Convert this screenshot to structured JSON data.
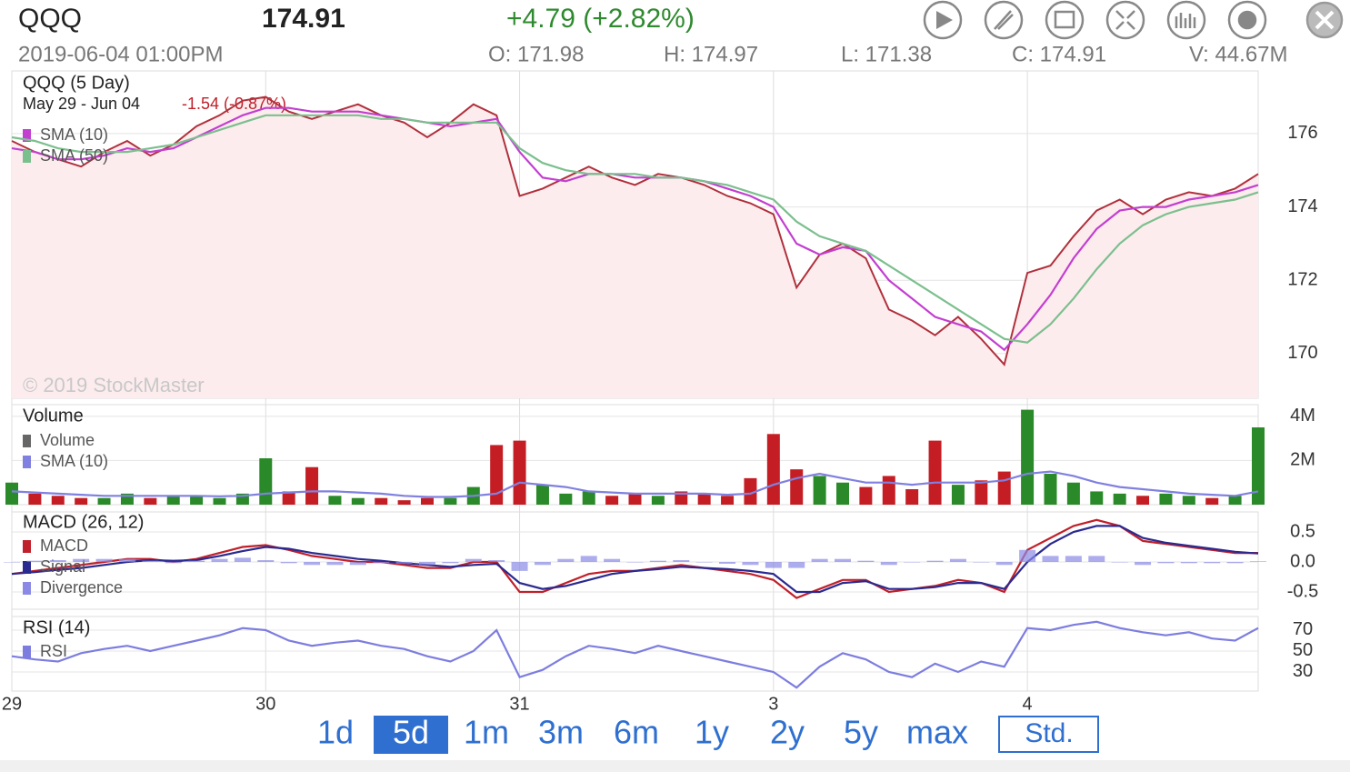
{
  "header": {
    "symbol": "QQQ",
    "price": "174.91",
    "change": "+4.79 (+2.82%)",
    "datetime": "2019-06-04 01:00PM",
    "open": "O: 171.98",
    "high": "H: 174.97",
    "low": "L: 171.38",
    "close": "C: 174.91",
    "volume": "V: 44.67M"
  },
  "chart_data": [
    {
      "type": "line",
      "title": "QQQ (5 Day)",
      "subtitle": "May 29 - Jun 04",
      "period_change": "-1.54 (-0.87%)",
      "annotation": "© 2019 StockMaster",
      "categories": [
        "29",
        null,
        null,
        null,
        null,
        null,
        null,
        null,
        null,
        null,
        null,
        "30",
        null,
        null,
        null,
        null,
        null,
        null,
        null,
        null,
        null,
        null,
        "31",
        null,
        null,
        null,
        null,
        null,
        null,
        null,
        null,
        null,
        null,
        "3",
        null,
        null,
        null,
        null,
        null,
        null,
        null,
        null,
        null,
        null,
        "4",
        null,
        null,
        null,
        null,
        null,
        null,
        null,
        null,
        null,
        null
      ],
      "values": [
        175.8,
        175.5,
        175.3,
        175.1,
        175.5,
        175.8,
        175.4,
        175.7,
        176.2,
        176.5,
        176.9,
        177.0,
        176.6,
        176.4,
        176.6,
        176.8,
        176.5,
        176.3,
        175.9,
        176.3,
        176.8,
        176.5,
        174.3,
        174.5,
        174.8,
        175.1,
        174.8,
        174.6,
        174.9,
        174.8,
        174.6,
        174.3,
        174.1,
        173.8,
        171.8,
        172.7,
        173.0,
        172.6,
        171.2,
        170.9,
        170.5,
        171.0,
        170.4,
        169.7,
        172.2,
        172.4,
        173.2,
        173.9,
        174.2,
        173.8,
        174.2,
        174.4,
        174.3,
        174.5,
        174.9
      ],
      "color": "#b0303c",
      "area_color": "#fdecee",
      "series": [
        {
          "name": "SMA (10)",
          "color": "#c23fd0",
          "values": [
            175.6,
            175.5,
            175.3,
            175.3,
            175.4,
            175.6,
            175.5,
            175.6,
            175.9,
            176.2,
            176.5,
            176.7,
            176.7,
            176.6,
            176.6,
            176.6,
            176.5,
            176.4,
            176.3,
            176.2,
            176.3,
            176.4,
            175.5,
            174.8,
            174.7,
            174.9,
            174.9,
            174.8,
            174.8,
            174.8,
            174.7,
            174.5,
            174.3,
            174.0,
            173.0,
            172.7,
            172.9,
            172.8,
            172.0,
            171.5,
            171.0,
            170.8,
            170.6,
            170.1,
            170.8,
            171.6,
            172.6,
            173.4,
            173.9,
            174.0,
            174.0,
            174.2,
            174.3,
            174.4,
            174.6
          ]
        },
        {
          "name": "SMA (50)",
          "color": "#7cbf8e",
          "values": [
            175.9,
            175.8,
            175.6,
            175.5,
            175.5,
            175.5,
            175.6,
            175.7,
            175.9,
            176.1,
            176.3,
            176.5,
            176.5,
            176.5,
            176.5,
            176.5,
            176.4,
            176.4,
            176.3,
            176.3,
            176.3,
            176.3,
            175.6,
            175.2,
            175.0,
            174.9,
            174.9,
            174.9,
            174.8,
            174.8,
            174.7,
            174.6,
            174.4,
            174.2,
            173.6,
            173.2,
            173.0,
            172.8,
            172.4,
            172.0,
            171.6,
            171.2,
            170.8,
            170.4,
            170.3,
            170.8,
            171.5,
            172.3,
            173.0,
            173.5,
            173.8,
            174.0,
            174.1,
            174.2,
            174.4
          ]
        }
      ],
      "ylim": [
        168.78,
        177.71
      ],
      "yticks": [
        170,
        172,
        174,
        176
      ],
      "grid": true
    },
    {
      "type": "bar",
      "title": "Volume",
      "series": [
        {
          "name": "Volume",
          "type": "bar",
          "color": "#666666",
          "up_color": "#2a8a2a",
          "down_color": "#c41e24",
          "values": [
            1000000,
            500000,
            400000,
            300000,
            300000,
            500000,
            300000,
            400000,
            400000,
            300000,
            500000,
            2100000,
            600000,
            1700000,
            400000,
            300000,
            300000,
            200000,
            300000,
            300000,
            800000,
            2700000,
            2900000,
            900000,
            500000,
            600000,
            400000,
            500000,
            400000,
            600000,
            500000,
            400000,
            1200000,
            3200000,
            1600000,
            1300000,
            1000000,
            800000,
            1300000,
            700000,
            2900000,
            900000,
            1100000,
            1500000,
            4300000,
            1400000,
            1000000,
            600000,
            500000,
            400000,
            500000,
            400000,
            300000,
            400000,
            3500000
          ]
        },
        {
          "name": "SMA (10)",
          "color": "#8080e0",
          "values": [
            600000,
            550000,
            500000,
            450000,
            400000,
            400000,
            400000,
            400000,
            400000,
            380000,
            400000,
            500000,
            550000,
            600000,
            600000,
            550000,
            500000,
            400000,
            350000,
            350000,
            400000,
            500000,
            1000000,
            900000,
            800000,
            600000,
            550000,
            500000,
            500000,
            500000,
            500000,
            450000,
            500000,
            900000,
            1200000,
            1400000,
            1200000,
            1000000,
            1000000,
            900000,
            1000000,
            1000000,
            1000000,
            1100000,
            1400000,
            1500000,
            1300000,
            1000000,
            800000,
            700000,
            600000,
            500000,
            450000,
            400000,
            600000
          ]
        }
      ],
      "ylim": [
        0,
        4530000
      ],
      "yticks": [
        {
          "value": 4000000,
          "label": "4M"
        },
        {
          "value": 2000000,
          "label": "2M"
        }
      ],
      "grid": true
    },
    {
      "type": "line",
      "title": "MACD (26, 12)",
      "series": [
        {
          "name": "MACD",
          "color": "#c0202a",
          "values": [
            -0.2,
            -0.15,
            -0.1,
            -0.05,
            0.0,
            0.05,
            0.05,
            0.0,
            0.05,
            0.15,
            0.25,
            0.28,
            0.2,
            0.1,
            0.05,
            0.0,
            0.0,
            -0.05,
            -0.1,
            -0.1,
            0.0,
            0.0,
            -0.5,
            -0.5,
            -0.35,
            -0.2,
            -0.15,
            -0.15,
            -0.1,
            -0.05,
            -0.1,
            -0.15,
            -0.2,
            -0.3,
            -0.6,
            -0.45,
            -0.3,
            -0.3,
            -0.5,
            -0.45,
            -0.4,
            -0.3,
            -0.35,
            -0.5,
            0.2,
            0.4,
            0.6,
            0.7,
            0.6,
            0.35,
            0.3,
            0.25,
            0.2,
            0.15,
            0.15
          ]
        },
        {
          "name": "Signal",
          "color": "#2a2a90",
          "values": [
            -0.2,
            -0.17,
            -0.13,
            -0.1,
            -0.05,
            0.0,
            0.03,
            0.02,
            0.03,
            0.1,
            0.18,
            0.25,
            0.22,
            0.15,
            0.1,
            0.05,
            0.02,
            -0.02,
            -0.05,
            -0.08,
            -0.05,
            -0.03,
            -0.35,
            -0.45,
            -0.4,
            -0.3,
            -0.2,
            -0.15,
            -0.12,
            -0.08,
            -0.1,
            -0.12,
            -0.15,
            -0.2,
            -0.5,
            -0.5,
            -0.35,
            -0.32,
            -0.45,
            -0.45,
            -0.42,
            -0.35,
            -0.35,
            -0.45,
            0.0,
            0.3,
            0.5,
            0.6,
            0.6,
            0.4,
            0.32,
            0.27,
            0.22,
            0.17,
            0.14
          ]
        },
        {
          "name": "Divergence",
          "type": "bar",
          "color": "#8a8ae6",
          "values": [
            0,
            0.02,
            0.03,
            0.05,
            0.05,
            0.05,
            0.02,
            -0.02,
            0.02,
            0.05,
            0.07,
            0.03,
            -0.02,
            -0.05,
            -0.05,
            -0.05,
            -0.02,
            -0.03,
            -0.05,
            -0.02,
            0.05,
            0.03,
            -0.15,
            -0.05,
            0.05,
            0.1,
            0.05,
            0,
            0.02,
            0.03,
            0,
            -0.03,
            -0.05,
            -0.1,
            -0.1,
            0.05,
            0.05,
            0.02,
            -0.05,
            0,
            0.02,
            0.05,
            0,
            -0.05,
            0.2,
            0.1,
            0.1,
            0.1,
            0,
            -0.05,
            -0.02,
            -0.02,
            -0.02,
            -0.02,
            0.01
          ]
        }
      ],
      "ylim": [
        -0.788,
        0.833
      ],
      "yticks": [
        0.5,
        {
          "value": 0,
          "label": "0.0"
        },
        -0.5
      ],
      "grid": true
    },
    {
      "type": "line",
      "title": "RSI (14)",
      "series": [
        {
          "name": "RSI",
          "color": "#7d7de0",
          "values": [
            45,
            42,
            40,
            48,
            52,
            55,
            50,
            55,
            60,
            65,
            72,
            70,
            60,
            55,
            58,
            60,
            55,
            52,
            45,
            40,
            50,
            70,
            25,
            32,
            45,
            55,
            52,
            48,
            55,
            50,
            45,
            40,
            35,
            30,
            15,
            35,
            48,
            42,
            30,
            25,
            38,
            30,
            40,
            35,
            72,
            70,
            75,
            78,
            72,
            68,
            65,
            68,
            62,
            60,
            72
          ]
        }
      ],
      "ylim": [
        11.7,
        83
      ],
      "yticks": [
        70,
        50,
        30
      ],
      "grid": true
    }
  ],
  "range_buttons": {
    "items": [
      "1d",
      "5d",
      "1m",
      "3m",
      "6m",
      "1y",
      "2y",
      "5y",
      "max"
    ],
    "selected": 1,
    "style": "Std."
  }
}
